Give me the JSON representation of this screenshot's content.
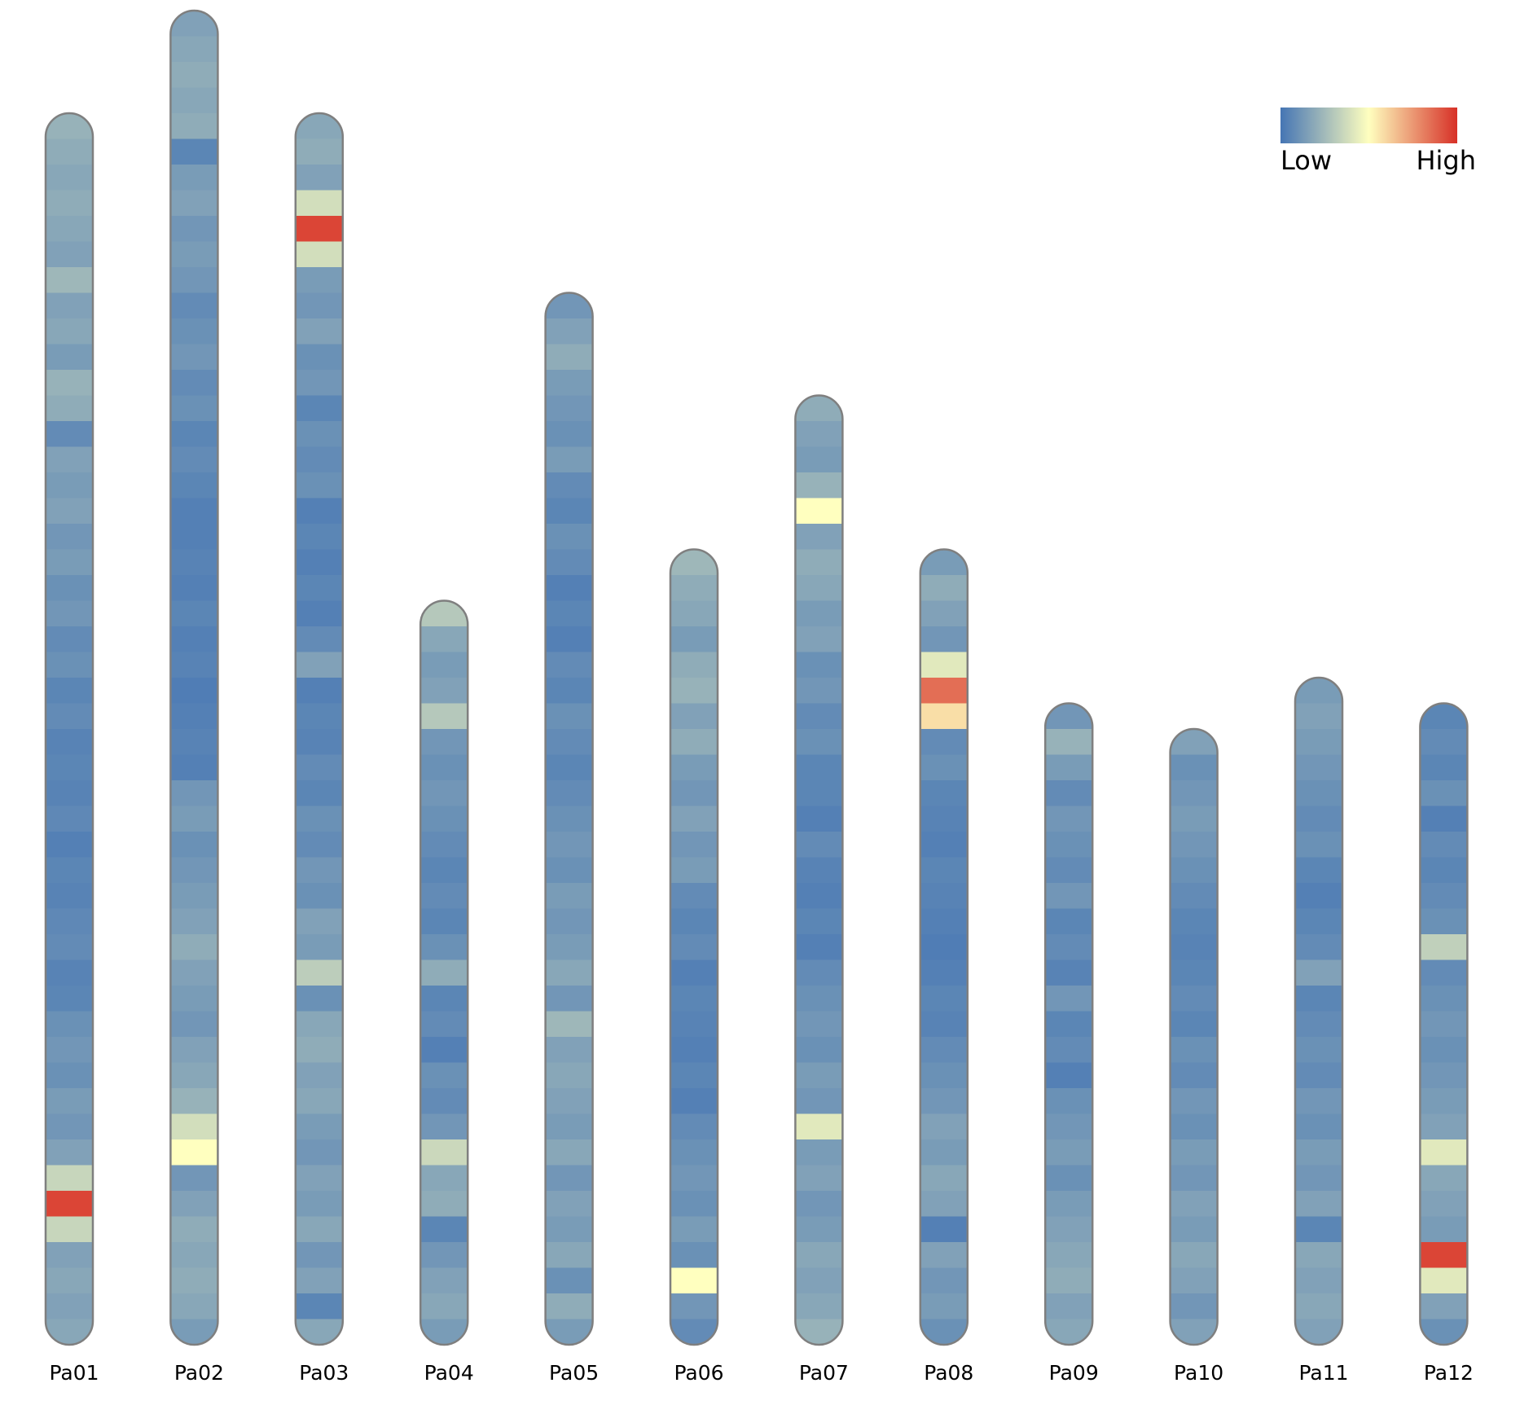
{
  "chart_data": {
    "type": "chromosome-heatmap",
    "colormap": [
      "#4575b4",
      "#ffffbf",
      "#d73027"
    ],
    "legend": {
      "low": "Low",
      "high": "High"
    },
    "series": [
      {
        "name": "Pa01",
        "values": [
          0.22,
          0.2,
          0.18,
          0.2,
          0.18,
          0.16,
          0.24,
          0.16,
          0.18,
          0.14,
          0.22,
          0.2,
          0.08,
          0.16,
          0.14,
          0.16,
          0.12,
          0.14,
          0.1,
          0.12,
          0.08,
          0.1,
          0.06,
          0.08,
          0.05,
          0.06,
          0.05,
          0.07,
          0.04,
          0.06,
          0.05,
          0.07,
          0.08,
          0.05,
          0.06,
          0.1,
          0.12,
          0.1,
          0.14,
          0.12,
          0.16,
          0.35,
          0.95,
          0.35,
          0.16,
          0.18,
          0.16,
          0.18
        ]
      },
      {
        "name": "Pa02",
        "values": [
          0.16,
          0.18,
          0.2,
          0.18,
          0.2,
          0.06,
          0.14,
          0.16,
          0.12,
          0.14,
          0.12,
          0.08,
          0.1,
          0.12,
          0.08,
          0.1,
          0.06,
          0.08,
          0.06,
          0.04,
          0.04,
          0.05,
          0.04,
          0.06,
          0.04,
          0.05,
          0.03,
          0.04,
          0.05,
          0.04,
          0.12,
          0.14,
          0.1,
          0.12,
          0.14,
          0.16,
          0.2,
          0.16,
          0.14,
          0.12,
          0.16,
          0.18,
          0.22,
          0.38,
          0.5,
          0.12,
          0.16,
          0.2,
          0.18,
          0.2,
          0.18,
          0.14
        ]
      },
      {
        "name": "Pa03",
        "values": [
          0.18,
          0.2,
          0.16,
          0.38,
          0.95,
          0.38,
          0.14,
          0.12,
          0.16,
          0.1,
          0.12,
          0.06,
          0.1,
          0.08,
          0.1,
          0.04,
          0.06,
          0.04,
          0.06,
          0.04,
          0.08,
          0.16,
          0.04,
          0.06,
          0.05,
          0.08,
          0.06,
          0.1,
          0.08,
          0.12,
          0.1,
          0.16,
          0.14,
          0.32,
          0.1,
          0.18,
          0.2,
          0.16,
          0.18,
          0.14,
          0.12,
          0.16,
          0.14,
          0.18,
          0.12,
          0.16,
          0.06,
          0.18
        ]
      },
      {
        "name": "Pa04",
        "values": [
          0.3,
          0.18,
          0.14,
          0.16,
          0.3,
          0.12,
          0.1,
          0.12,
          0.1,
          0.08,
          0.06,
          0.08,
          0.06,
          0.1,
          0.2,
          0.06,
          0.08,
          0.04,
          0.1,
          0.08,
          0.12,
          0.36,
          0.18,
          0.2,
          0.06,
          0.12,
          0.16,
          0.18,
          0.14
        ]
      },
      {
        "name": "Pa05",
        "values": [
          0.12,
          0.16,
          0.2,
          0.14,
          0.12,
          0.1,
          0.14,
          0.08,
          0.06,
          0.1,
          0.08,
          0.04,
          0.06,
          0.04,
          0.08,
          0.06,
          0.1,
          0.08,
          0.06,
          0.08,
          0.1,
          0.12,
          0.1,
          0.14,
          0.12,
          0.14,
          0.18,
          0.12,
          0.24,
          0.16,
          0.18,
          0.16,
          0.14,
          0.18,
          0.12,
          0.16,
          0.14,
          0.18,
          0.1,
          0.2,
          0.14
        ]
      },
      {
        "name": "Pa06",
        "values": [
          0.24,
          0.2,
          0.18,
          0.14,
          0.2,
          0.22,
          0.16,
          0.2,
          0.14,
          0.12,
          0.16,
          0.12,
          0.14,
          0.08,
          0.06,
          0.08,
          0.04,
          0.06,
          0.05,
          0.04,
          0.06,
          0.04,
          0.08,
          0.1,
          0.12,
          0.1,
          0.14,
          0.1,
          0.5,
          0.12,
          0.08
        ]
      },
      {
        "name": "Pa07",
        "values": [
          0.2,
          0.16,
          0.14,
          0.22,
          0.5,
          0.16,
          0.2,
          0.18,
          0.14,
          0.16,
          0.1,
          0.12,
          0.08,
          0.1,
          0.06,
          0.06,
          0.04,
          0.08,
          0.05,
          0.04,
          0.06,
          0.04,
          0.08,
          0.1,
          0.12,
          0.1,
          0.14,
          0.12,
          0.42,
          0.14,
          0.16,
          0.12,
          0.14,
          0.18,
          0.16,
          0.18,
          0.22
        ]
      },
      {
        "name": "Pa08",
        "values": [
          0.14,
          0.2,
          0.16,
          0.12,
          0.42,
          0.85,
          0.58,
          0.08,
          0.1,
          0.06,
          0.05,
          0.04,
          0.06,
          0.05,
          0.04,
          0.03,
          0.04,
          0.06,
          0.05,
          0.08,
          0.1,
          0.12,
          0.16,
          0.14,
          0.18,
          0.16,
          0.04,
          0.16,
          0.12,
          0.14,
          0.1
        ]
      },
      {
        "name": "Pa09",
        "values": [
          0.12,
          0.22,
          0.14,
          0.08,
          0.12,
          0.1,
          0.08,
          0.12,
          0.06,
          0.08,
          0.05,
          0.12,
          0.06,
          0.08,
          0.04,
          0.1,
          0.12,
          0.14,
          0.1,
          0.14,
          0.16,
          0.18,
          0.2,
          0.16,
          0.18
        ]
      },
      {
        "name": "Pa10",
        "values": [
          0.16,
          0.1,
          0.12,
          0.14,
          0.12,
          0.1,
          0.08,
          0.06,
          0.05,
          0.06,
          0.08,
          0.06,
          0.1,
          0.08,
          0.12,
          0.1,
          0.14,
          0.12,
          0.16,
          0.14,
          0.18,
          0.16,
          0.12,
          0.16
        ]
      },
      {
        "name": "Pa11",
        "values": [
          0.14,
          0.16,
          0.14,
          0.12,
          0.1,
          0.08,
          0.1,
          0.06,
          0.04,
          0.06,
          0.08,
          0.16,
          0.06,
          0.08,
          0.1,
          0.08,
          0.12,
          0.1,
          0.14,
          0.12,
          0.16,
          0.06,
          0.18,
          0.16,
          0.18,
          0.16
        ]
      },
      {
        "name": "Pa12",
        "values": [
          0.06,
          0.08,
          0.06,
          0.1,
          0.04,
          0.08,
          0.06,
          0.08,
          0.1,
          0.33,
          0.08,
          0.1,
          0.12,
          0.1,
          0.12,
          0.14,
          0.16,
          0.42,
          0.18,
          0.16,
          0.14,
          0.95,
          0.42,
          0.16,
          0.1
        ]
      }
    ]
  }
}
